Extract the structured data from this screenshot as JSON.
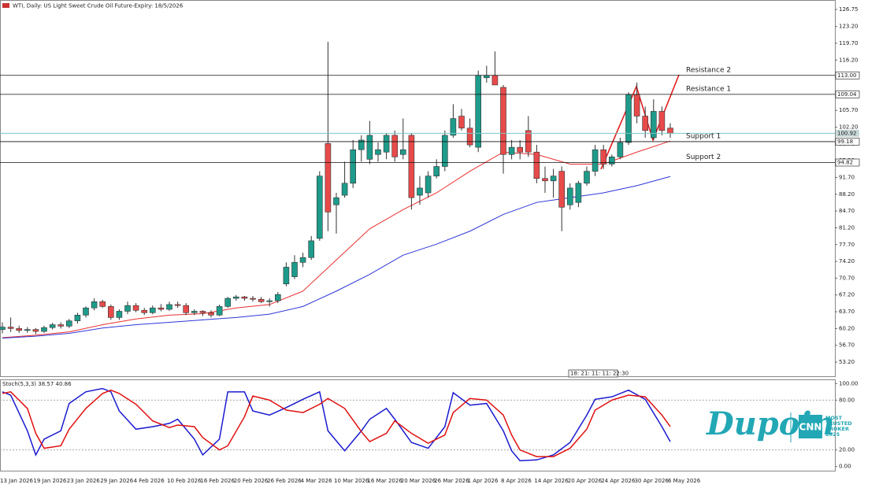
{
  "header": "WTI, Daily: US Light Sweet Crude Oil Future-Expiry: 18/5/2026",
  "time_marker": "18: 21: 11: 11: 22:30",
  "logo": {
    "brand": "Dupoin",
    "badge": "CNN",
    "lines": [
      "MOST",
      "TRUSTED",
      "BROKER",
      "2025"
    ]
  },
  "chart_data": [
    {
      "type": "candlestick",
      "categories": [
        "13 Jan 2026",
        null,
        null,
        null,
        "19 Jan 2026",
        null,
        null,
        null,
        "23 Jan 2026",
        null,
        null,
        null,
        "29 Jan 2026",
        null,
        null,
        null,
        "4 Feb 2026",
        null,
        null,
        null,
        "10 Feb 2026",
        null,
        null,
        null,
        "16 Feb 2026",
        null,
        null,
        null,
        "20 Feb 2026",
        null,
        null,
        null,
        "26 Feb 2026",
        null,
        null,
        null,
        "4 Mar 2026",
        null,
        null,
        null,
        "10 Mar 2026",
        null,
        null,
        null,
        "16 Mar 2026",
        null,
        null,
        null,
        "20 Mar 2026",
        null,
        null,
        null,
        "26 Mar 2026",
        null,
        null,
        null,
        "1 Apr 2026",
        null,
        null,
        null,
        "8 Apr 2026",
        null,
        null,
        null,
        "14 Apr 2026",
        null,
        null,
        null,
        "20 Apr 2026",
        null,
        null,
        null,
        "24 Apr 2026",
        null,
        null,
        null,
        "30 Apr 2026",
        null,
        null,
        null,
        "6 May 2026"
      ],
      "ohlc": [
        [
          60.0,
          61.5,
          59.2,
          60.5
        ],
        [
          60.5,
          62.5,
          59.5,
          60.2
        ],
        [
          60.2,
          60.8,
          59.3,
          59.8
        ],
        [
          59.8,
          60.5,
          59.3,
          60.0
        ],
        [
          60.0,
          60.3,
          59.0,
          59.6
        ],
        [
          59.6,
          60.8,
          59.3,
          60.4
        ],
        [
          60.4,
          61.4,
          60.0,
          61.0
        ],
        [
          61.0,
          61.5,
          60.2,
          60.7
        ],
        [
          60.7,
          62.2,
          60.3,
          61.8
        ],
        [
          61.8,
          63.5,
          61.2,
          63.0
        ],
        [
          63.0,
          64.8,
          62.5,
          64.5
        ],
        [
          64.5,
          66.5,
          64.0,
          65.8
        ],
        [
          65.8,
          66.2,
          64.5,
          64.8
        ],
        [
          64.8,
          65.2,
          62.0,
          62.5
        ],
        [
          62.5,
          64.2,
          62.0,
          63.8
        ],
        [
          63.8,
          65.8,
          63.2,
          65.0
        ],
        [
          65.0,
          65.5,
          63.6,
          64.0
        ],
        [
          64.0,
          64.5,
          63.0,
          63.5
        ],
        [
          63.5,
          65.0,
          63.2,
          64.5
        ],
        [
          64.5,
          65.3,
          63.8,
          64.2
        ],
        [
          64.2,
          65.8,
          63.9,
          65.2
        ],
        [
          65.2,
          65.8,
          64.5,
          65.0
        ],
        [
          65.0,
          65.5,
          63.0,
          63.5
        ],
        [
          63.5,
          64.2,
          63.0,
          63.8
        ],
        [
          63.8,
          64.0,
          62.8,
          63.5
        ],
        [
          63.5,
          64.0,
          62.5,
          63.0
        ],
        [
          63.0,
          65.2,
          62.8,
          64.8
        ],
        [
          64.8,
          66.8,
          64.5,
          66.5
        ],
        [
          66.5,
          67.2,
          66.0,
          66.8
        ],
        [
          66.8,
          67.0,
          66.0,
          66.5
        ],
        [
          66.5,
          67.0,
          65.8,
          66.3
        ],
        [
          66.3,
          66.8,
          65.5,
          65.8
        ],
        [
          65.8,
          66.5,
          64.8,
          66.0
        ],
        [
          66.0,
          67.8,
          65.5,
          67.3
        ],
        [
          69.5,
          74.0,
          69.0,
          73.0
        ],
        [
          71.0,
          75.5,
          70.5,
          74.0
        ],
        [
          74.0,
          76.0,
          73.0,
          75.0
        ],
        [
          75.0,
          79.5,
          74.5,
          78.5
        ],
        [
          79.0,
          93.0,
          78.5,
          92.0
        ],
        [
          98.8,
          120.0,
          80.5,
          84.5
        ],
        [
          86.0,
          88.5,
          80.0,
          87.5
        ],
        [
          88.0,
          95.0,
          87.5,
          90.5
        ],
        [
          90.5,
          99.5,
          89.5,
          97.5
        ],
        [
          97.5,
          100.5,
          95.0,
          99.5
        ],
        [
          95.5,
          103.5,
          94.5,
          100.5
        ],
        [
          96.5,
          99.0,
          95.0,
          97.5
        ],
        [
          97.0,
          101.0,
          95.5,
          100.5
        ],
        [
          100.5,
          101.5,
          95.0,
          96.0
        ],
        [
          96.5,
          104.0,
          95.5,
          97.5
        ],
        [
          100.5,
          101.0,
          85.0,
          87.5
        ],
        [
          88.0,
          92.0,
          86.0,
          89.5
        ],
        [
          88.5,
          93.0,
          87.5,
          92.0
        ],
        [
          92.0,
          95.5,
          91.5,
          94.0
        ],
        [
          94.0,
          101.5,
          93.0,
          100.5
        ],
        [
          100.5,
          107.0,
          100.0,
          104.0
        ],
        [
          104.5,
          106.0,
          101.5,
          102.0
        ],
        [
          102.0,
          104.0,
          98.0,
          98.5
        ],
        [
          98.0,
          114.0,
          97.0,
          113.0
        ],
        [
          112.5,
          115.0,
          111.5,
          113.0
        ],
        [
          113.0,
          118.0,
          111.0,
          111.0
        ],
        [
          110.5,
          111.0,
          92.5,
          96.5
        ],
        [
          96.5,
          99.5,
          95.5,
          98.0
        ],
        [
          98.0,
          99.5,
          95.5,
          97.0
        ],
        [
          101.5,
          104.5,
          96.0,
          97.0
        ],
        [
          97.0,
          98.5,
          90.5,
          91.5
        ],
        [
          91.5,
          94.0,
          88.5,
          91.0
        ],
        [
          91.0,
          93.5,
          87.5,
          92.0
        ],
        [
          93.0,
          94.0,
          80.5,
          85.5
        ],
        [
          86.0,
          90.5,
          85.0,
          89.5
        ],
        [
          86.5,
          91.0,
          85.5,
          90.5
        ],
        [
          90.5,
          94.0,
          90.0,
          93.0
        ],
        [
          93.0,
          98.5,
          92.0,
          97.5
        ],
        [
          97.5,
          98.5,
          93.5,
          94.5
        ],
        [
          94.5,
          96.5,
          94.0,
          96.0
        ],
        [
          96.0,
          100.0,
          95.5,
          99.0
        ],
        [
          99.0,
          109.5,
          98.5,
          109.0
        ],
        [
          109.0,
          111.5,
          103.0,
          104.5
        ],
        [
          104.5,
          106.5,
          100.0,
          101.5
        ],
        [
          100.0,
          108.0,
          99.5,
          105.5
        ],
        [
          105.5,
          106.5,
          100.5,
          101.5
        ],
        [
          102.0,
          103.0,
          100.0,
          100.9
        ]
      ],
      "up_color": "#1e9b8a",
      "down_color": "#e84a4a",
      "series": [
        {
          "color": "#e8302f",
          "x": [
            0,
            4,
            8,
            12,
            16,
            20,
            24,
            28,
            32,
            36,
            40,
            44,
            48,
            52,
            56,
            60,
            64,
            68,
            72,
            76,
            80
          ],
          "values": [
            58.3,
            58.8,
            59.5,
            61.0,
            62.2,
            63.0,
            63.3,
            64.5,
            65.2,
            68.0,
            74.5,
            81.0,
            85.0,
            88.5,
            93.0,
            97.0,
            96.5,
            94.5,
            94.5,
            97.0,
            99.3
          ]
        },
        {
          "color": "#2f35d8",
          "x": [
            0,
            4,
            8,
            12,
            16,
            20,
            24,
            28,
            32,
            36,
            40,
            44,
            48,
            52,
            56,
            60,
            64,
            68,
            72,
            76,
            80
          ],
          "values": [
            58.2,
            58.6,
            59.2,
            60.3,
            61.0,
            61.5,
            62.0,
            62.5,
            63.2,
            64.8,
            68.0,
            71.5,
            75.5,
            77.8,
            80.5,
            84.0,
            86.5,
            87.5,
            88.5,
            90.0,
            91.9
          ]
        }
      ],
      "levels": [
        {
          "label": "Resistance 2",
          "value": 113.0,
          "value_label": "113.00"
        },
        {
          "label": "Resistance 1",
          "value": 109.04
        },
        {
          "label": "Support 1",
          "value": 99.18
        },
        {
          "label": "Support 2",
          "value": 94.82
        }
      ],
      "current_price": 100.92,
      "ylim": [
        50.25,
        128.72
      ],
      "yticks": [
        126.75,
        {
          "value": 123.2,
          "label": "123.20"
        },
        {
          "value": 119.7,
          "label": "119.70"
        },
        {
          "value": 116.2,
          "label": "116.20"
        },
        {
          "value": 112.7,
          "label": "112.70"
        },
        {
          "value": 109.2,
          "label": "109.20"
        },
        {
          "value": 105.7,
          "label": "105.70"
        },
        {
          "value": 102.2,
          "label": "102.20"
        },
        {
          "value": 98.7,
          "label": "98.70"
        },
        {
          "value": 95.2,
          "label": "95.20"
        },
        {
          "value": 91.7,
          "label": "91.70"
        },
        {
          "value": 88.2,
          "label": "88.20"
        },
        {
          "value": 84.7,
          "label": "84.70"
        },
        {
          "value": 81.2,
          "label": "81.20"
        },
        {
          "value": 77.7,
          "label": "77.70"
        },
        {
          "value": 74.2,
          "label": "74.20"
        },
        {
          "value": 70.7,
          "label": "70.70"
        },
        {
          "value": 67.2,
          "label": "67.20"
        },
        {
          "value": 63.7,
          "label": "63.70"
        },
        {
          "value": 60.2,
          "label": "60.20"
        },
        {
          "value": 56.7,
          "label": "56.70"
        },
        {
          "value": 53.2,
          "label": "53.20"
        }
      ]
    },
    {
      "type": "line",
      "title": "Stoch(5,3,3) 38.57 40.86",
      "series": [
        {
          "color": "#1a1ad0",
          "x": [
            0,
            1,
            3,
            4,
            5,
            7,
            8,
            10,
            12,
            13,
            14,
            16,
            18,
            20,
            21,
            23,
            24,
            26,
            27,
            29,
            30,
            32,
            34,
            36,
            38,
            39,
            41,
            43,
            44,
            46,
            47,
            49,
            51,
            53,
            54,
            56,
            58,
            60,
            61,
            62,
            64,
            66,
            68,
            70,
            71,
            73,
            75,
            77,
            79,
            80
          ],
          "values": [
            90,
            86,
            43,
            14,
            33,
            43,
            76,
            90,
            94,
            90,
            67,
            45,
            48,
            52,
            57,
            33,
            14,
            33,
            90,
            90,
            67,
            62,
            71,
            81,
            90,
            43,
            19,
            43,
            57,
            70,
            57,
            29,
            22,
            48,
            89,
            74,
            76,
            43,
            19,
            7,
            8,
            14,
            29,
            62,
            81,
            84,
            92,
            81,
            48,
            30
          ]
        },
        {
          "color": "#e01010",
          "x": [
            0,
            1,
            3,
            4,
            5,
            7,
            8,
            10,
            12,
            13,
            14,
            16,
            18,
            20,
            21,
            23,
            24,
            26,
            27,
            29,
            30,
            32,
            34,
            36,
            38,
            39,
            41,
            43,
            44,
            46,
            47,
            49,
            51,
            53,
            54,
            56,
            58,
            60,
            61,
            62,
            64,
            66,
            68,
            70,
            71,
            73,
            75,
            77,
            79,
            80
          ],
          "values": [
            88,
            90,
            70,
            40,
            22,
            25,
            45,
            70,
            88,
            92,
            88,
            75,
            55,
            47,
            50,
            48,
            35,
            20,
            25,
            60,
            85,
            80,
            68,
            65,
            75,
            82,
            70,
            42,
            30,
            40,
            55,
            40,
            28,
            38,
            65,
            82,
            80,
            62,
            38,
            20,
            12,
            12,
            22,
            45,
            68,
            80,
            86,
            84,
            62,
            48
          ]
        }
      ],
      "ylim": [
        -5,
        105
      ],
      "yticks": [
        {
          "value": 100,
          "label": "100.00"
        },
        {
          "value": 80,
          "label": "80.00"
        },
        {
          "value": 20,
          "label": "20.00"
        },
        {
          "value": 0,
          "label": "0.00"
        }
      ]
    }
  ]
}
